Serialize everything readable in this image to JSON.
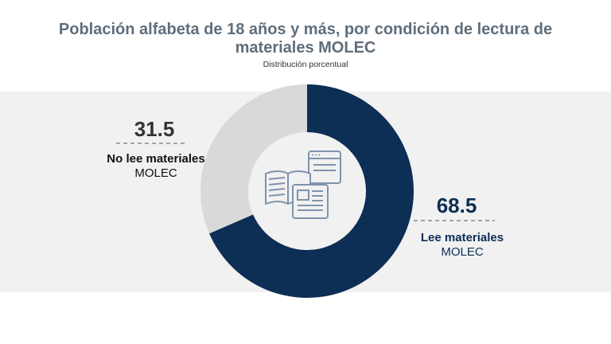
{
  "title_line1": "Población alfabeta de 18 años y más, por condición de lectura de",
  "title_line2": "materiales MOLEC",
  "subtitle": "Distribución porcentual",
  "chart_data": {
    "type": "pie",
    "variant": "donut",
    "title": "Población alfabeta de 18 años y más, por condición de lectura de materiales MOLEC",
    "subtitle": "Distribución porcentual",
    "slices": [
      {
        "label_bold": "Lee materiales",
        "label_rest": "MOLEC",
        "value": 68.5,
        "value_label": "68.5",
        "color": "#0d2e55"
      },
      {
        "label_bold": "No lee materiales",
        "label_rest": "MOLEC",
        "value": 31.5,
        "value_label": "31.5",
        "color": "#d9d9d9"
      }
    ],
    "center_icon": "reading-materials-icon"
  },
  "colors": {
    "title": "#5f6e7c",
    "band": "#f1f1f1",
    "lee": "#0d2e55",
    "no_lee": "#d9d9d9",
    "icon": "#7f93ad",
    "dashes": "#888888"
  }
}
